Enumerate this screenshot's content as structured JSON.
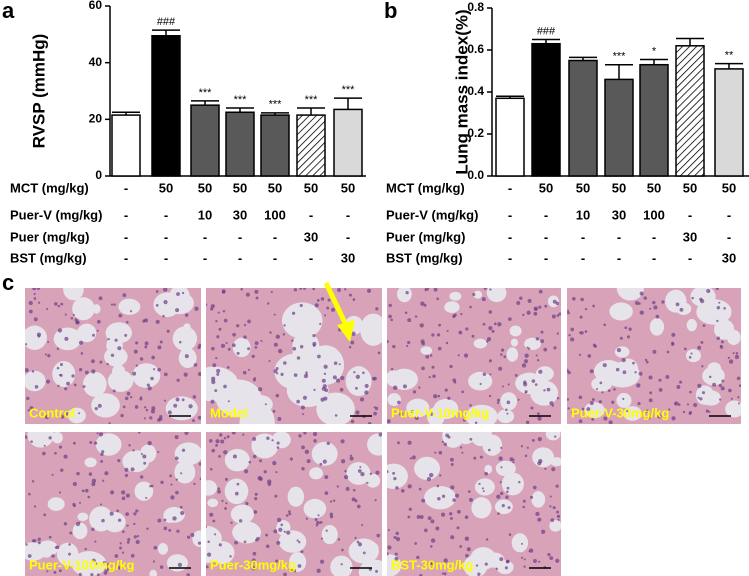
{
  "panel_labels": [
    "a",
    "b",
    "c"
  ],
  "chart_data": [
    {
      "type": "bar",
      "y_label": "RVSP (mmHg)",
      "ylim": [
        0,
        60
      ],
      "yticks": [
        0,
        20,
        40,
        60
      ],
      "values": [
        21.5,
        49.5,
        25,
        22.5,
        21.5,
        21.5,
        23.5
      ],
      "errors": [
        1,
        2,
        1.5,
        1.5,
        0.8,
        2.5,
        4
      ],
      "colors": [
        "#ffffff",
        "#000000",
        "#595959",
        "#595959",
        "#595959",
        "#ffffff",
        "#d9d9d9"
      ],
      "hatched": [
        false,
        false,
        false,
        false,
        false,
        true,
        false
      ],
      "annotations": [
        null,
        "###",
        "***",
        "***",
        "***",
        "***",
        "***"
      ],
      "treatment_rows": [
        {
          "label": "MCT (mg/kg)",
          "cells": [
            "-",
            "50",
            "50",
            "50",
            "50",
            "50",
            "50"
          ]
        },
        {
          "label": "Puer-V (mg/kg)",
          "cells": [
            "-",
            "-",
            "10",
            "30",
            "100",
            "-",
            "-"
          ]
        },
        {
          "label": "Puer (mg/kg)",
          "cells": [
            "-",
            "-",
            "-",
            "-",
            "-",
            "30",
            "-"
          ]
        },
        {
          "label": "BST (mg/kg)",
          "cells": [
            "-",
            "-",
            "-",
            "-",
            "-",
            "-",
            "30"
          ]
        }
      ]
    },
    {
      "type": "bar",
      "y_label": "Lung mass index(%)",
      "ylim": [
        0,
        0.8
      ],
      "yticks": [
        {
          "value": 0,
          "label": "0.0"
        },
        0.2,
        0.4,
        0.6,
        0.8
      ],
      "values": [
        0.37,
        0.63,
        0.55,
        0.46,
        0.53,
        0.62,
        0.51
      ],
      "errors": [
        0.01,
        0.02,
        0.015,
        0.07,
        0.025,
        0.035,
        0.025
      ],
      "colors": [
        "#ffffff",
        "#000000",
        "#595959",
        "#595959",
        "#595959",
        "#ffffff",
        "#d9d9d9"
      ],
      "hatched": [
        false,
        false,
        false,
        false,
        false,
        true,
        false
      ],
      "annotations": [
        null,
        "###",
        null,
        "***",
        "*",
        null,
        "**"
      ],
      "treatment_rows": [
        {
          "label": "MCT (mg/kg)",
          "cells": [
            "-",
            "50",
            "50",
            "50",
            "50",
            "50",
            "50"
          ]
        },
        {
          "label": "Puer-V (mg/kg)",
          "cells": [
            "-",
            "-",
            "10",
            "30",
            "100",
            "-",
            "-"
          ]
        },
        {
          "label": "Puer (mg/kg)",
          "cells": [
            "-",
            "-",
            "-",
            "-",
            "-",
            "30",
            "-"
          ]
        },
        {
          "label": "BST (mg/kg)",
          "cells": [
            "-",
            "-",
            "-",
            "-",
            "-",
            "-",
            "30"
          ]
        }
      ]
    }
  ],
  "micrographs": [
    {
      "label": "Control"
    },
    {
      "label": "Model"
    },
    {
      "label": "Puer-V-10mg/kg"
    },
    {
      "label": "Puer-V-30mg/kg"
    },
    {
      "label": "Puer-V-100mg/kg"
    },
    {
      "label": "Puer-30mg/kg"
    },
    {
      "label": "BST-30mg/kg"
    }
  ]
}
